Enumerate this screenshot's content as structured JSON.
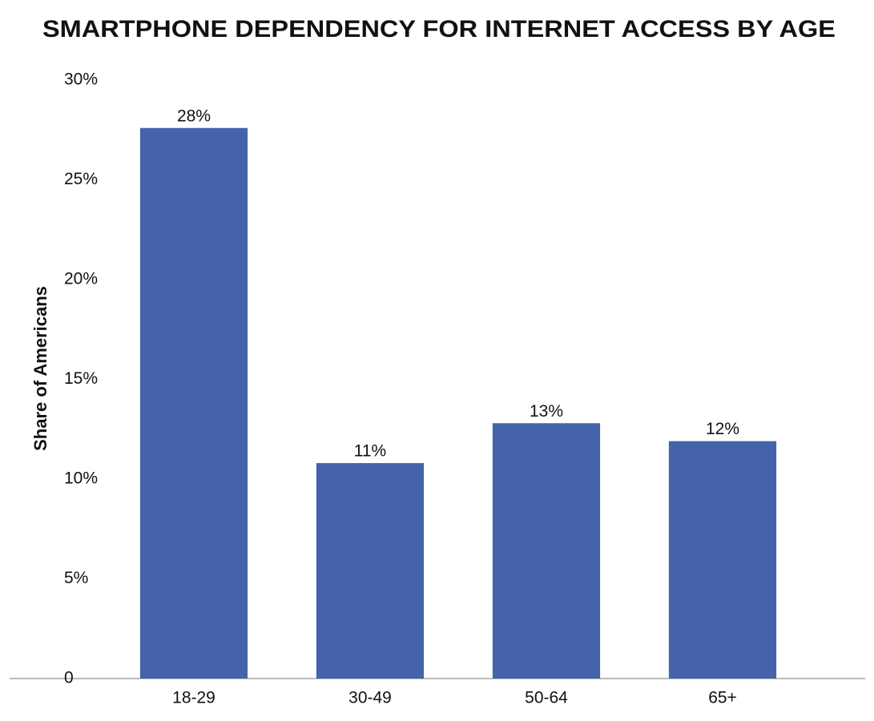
{
  "chart_data": {
    "type": "bar",
    "title": "SMARTPHONE DEPENDENCY FOR INTERNET ACCESS BY AGE",
    "y_label": "Share of Americans",
    "categories": [
      "18-29",
      "30-49",
      "50-64",
      "65+"
    ],
    "values": [
      27.6,
      10.8,
      12.8,
      11.9
    ],
    "value_labels": [
      "28%",
      "11%",
      "13%",
      "12%"
    ],
    "color": "#4563ab",
    "ylim": [
      0,
      30
    ],
    "yticks": [
      0,
      {
        "value": 5,
        "label": "5%"
      },
      {
        "value": 10,
        "label": "10%"
      },
      {
        "value": 15,
        "label": "15%"
      },
      {
        "value": 20,
        "label": "20%"
      },
      {
        "value": 25,
        "label": "25%"
      },
      {
        "value": 30,
        "label": "30%"
      }
    ],
    "grid": false
  }
}
